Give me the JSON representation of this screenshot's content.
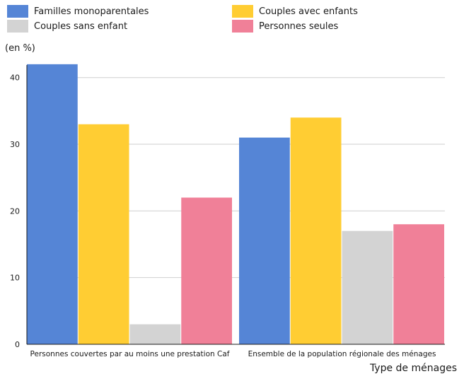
{
  "colors": {
    "familles_monoparentales": "#5585D6",
    "couples_avec_enfants": "#FFCD33",
    "couples_sans_enfant": "#D3D3D3",
    "personnes_seules": "#F08098",
    "gridline": "#cfcfcf",
    "axis": "#1a1a1a"
  },
  "chart_data": {
    "type": "bar",
    "ylabel": "(en %)",
    "xlabel": "Type de ménages",
    "categories": [
      "Personnes couvertes par au moins une prestation Caf",
      "Ensemble de la population régionale des ménages"
    ],
    "series": [
      {
        "name": "Familles monoparentales",
        "color_key": "familles_monoparentales",
        "values": [
          42,
          31
        ]
      },
      {
        "name": "Couples avec enfants",
        "color_key": "couples_avec_enfants",
        "values": [
          33,
          34
        ]
      },
      {
        "name": "Couples sans enfant",
        "color_key": "couples_sans_enfant",
        "values": [
          3,
          17
        ]
      },
      {
        "name": "Personnes seules",
        "color_key": "personnes_seules",
        "values": [
          22,
          18
        ]
      }
    ],
    "ylim": [
      0,
      44
    ],
    "yticks": [
      0,
      10,
      20,
      30,
      40
    ],
    "grid": true,
    "legend_position": "top"
  }
}
